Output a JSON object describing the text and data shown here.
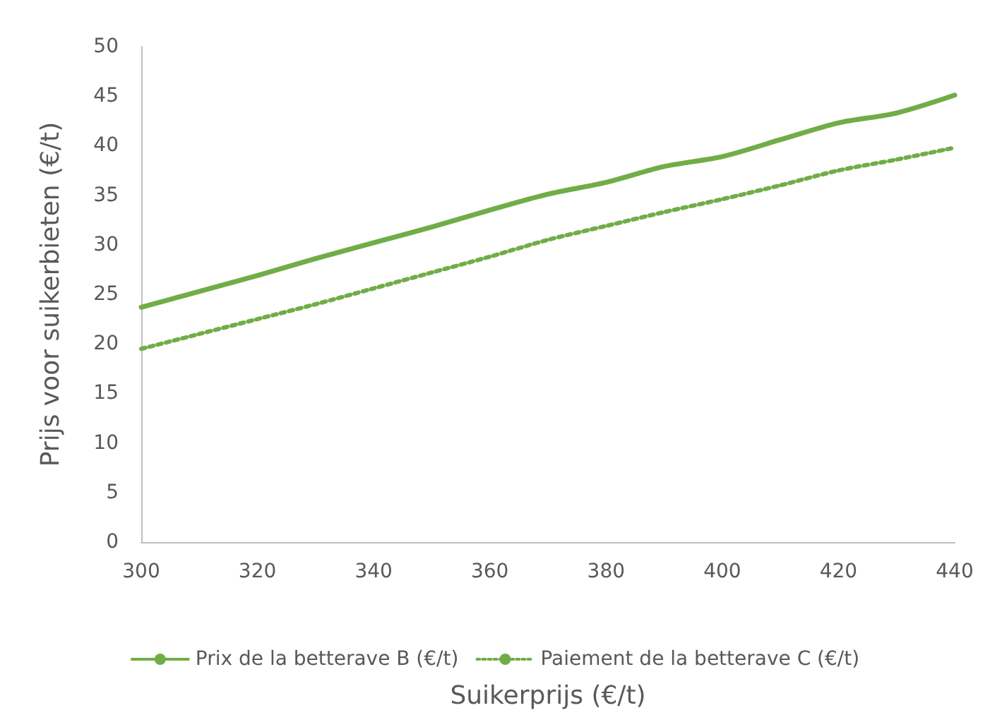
{
  "chart_data": {
    "type": "line",
    "xlabel": "Suikerprijs (€/t)",
    "ylabel": "Prijs voor suikerbieten (€/t)",
    "x": [
      300,
      310,
      320,
      330,
      340,
      350,
      360,
      370,
      380,
      390,
      400,
      410,
      420,
      430,
      440
    ],
    "series": [
      {
        "name": "Prix de la betterave B (€/t)",
        "color": "#70ad47",
        "line_style": "solid",
        "values": [
          23.7,
          25.3,
          26.9,
          28.6,
          30.2,
          31.8,
          33.5,
          35.1,
          36.3,
          37.9,
          38.9,
          40.6,
          42.3,
          43.3,
          45.1
        ]
      },
      {
        "name": "Paiement de la betterave C (€/t)",
        "color": "#70ad47",
        "line_style": "dotted",
        "values": [
          19.5,
          21.0,
          22.5,
          24.0,
          25.6,
          27.2,
          28.8,
          30.5,
          31.9,
          33.3,
          34.6,
          36.0,
          37.5,
          38.6,
          39.8
        ]
      }
    ],
    "xlim": [
      300,
      440
    ],
    "xticks": [
      300,
      320,
      340,
      360,
      380,
      400,
      420,
      440
    ],
    "ylim": [
      0,
      50
    ],
    "yticks": [
      0,
      5,
      10,
      15,
      20,
      25,
      30,
      35,
      40,
      45,
      50
    ],
    "grid": false,
    "legend": "bottom",
    "marker": "none"
  }
}
